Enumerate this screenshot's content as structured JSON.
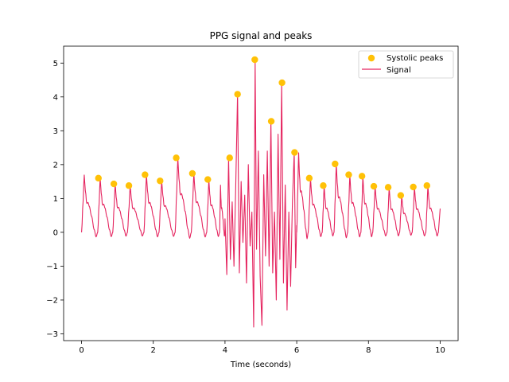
{
  "chart_data": {
    "type": "line",
    "title": "PPG signal and peaks",
    "xlabel": "Time (seconds)",
    "ylabel": "",
    "xlim": [
      -0.5,
      10.5
    ],
    "ylim": [
      -3.2,
      5.5
    ],
    "xticks": [
      0,
      2,
      4,
      6,
      8,
      10
    ],
    "yticks": [
      -3,
      -2,
      -1,
      0,
      1,
      2,
      3,
      4,
      5
    ],
    "grid": false,
    "legend_position": "top-right",
    "series": [
      {
        "name": "Signal",
        "kind": "line",
        "color": "#e5245f",
        "beats": [
          {
            "start": 0.0,
            "peak": 1.7
          },
          {
            "start": 0.45,
            "peak": 1.6
          },
          {
            "start": 0.87,
            "peak": 1.43
          },
          {
            "start": 1.28,
            "peak": 1.38
          },
          {
            "start": 1.74,
            "peak": 1.7
          },
          {
            "start": 2.16,
            "peak": 1.52
          },
          {
            "start": 2.61,
            "peak": 2.2
          },
          {
            "start": 3.06,
            "peak": 1.74
          },
          {
            "start": 3.49,
            "peak": 1.56
          },
          {
            "start": 3.85,
            "peak": 1.4
          }
        ],
        "noise_segment": {
          "start": 4.0,
          "end": 6.0,
          "anchors": [
            [
              4.0,
              0.4
            ],
            [
              4.05,
              -1.25
            ],
            [
              4.1,
              2.2
            ],
            [
              4.15,
              -0.8
            ],
            [
              4.2,
              0.9
            ],
            [
              4.25,
              -1.0
            ],
            [
              4.3,
              1.4
            ],
            [
              4.35,
              4.1
            ],
            [
              4.4,
              -1.2
            ],
            [
              4.45,
              1.5
            ],
            [
              4.5,
              -0.3
            ],
            [
              4.55,
              1.1
            ],
            [
              4.6,
              -1.5
            ],
            [
              4.65,
              2.0
            ],
            [
              4.7,
              -0.4
            ],
            [
              4.75,
              0.6
            ],
            [
              4.8,
              -2.8
            ],
            [
              4.84,
              5.1
            ],
            [
              4.88,
              -0.5
            ],
            [
              4.93,
              2.4
            ],
            [
              4.98,
              -1.3
            ],
            [
              5.03,
              -2.75
            ],
            [
              5.08,
              1.7
            ],
            [
              5.13,
              -0.7
            ],
            [
              5.18,
              2.4
            ],
            [
              5.23,
              -1.0
            ],
            [
              5.28,
              3.3
            ],
            [
              5.33,
              -1.2
            ],
            [
              5.38,
              0.6
            ],
            [
              5.43,
              -2.0
            ],
            [
              5.48,
              2.9
            ],
            [
              5.53,
              -0.8
            ],
            [
              5.58,
              4.4
            ],
            [
              5.63,
              -1.5
            ],
            [
              5.68,
              1.4
            ],
            [
              5.73,
              -2.3
            ],
            [
              5.78,
              0.6
            ],
            [
              5.83,
              -1.6
            ],
            [
              5.88,
              0.9
            ],
            [
              5.93,
              2.36
            ],
            [
              5.97,
              -1.05
            ],
            [
              6.0,
              0.2
            ]
          ]
        },
        "beats_after": [
          {
            "start": 6.0,
            "peak": 2.36
          },
          {
            "start": 6.32,
            "peak": 1.6
          },
          {
            "start": 6.71,
            "peak": 1.38
          },
          {
            "start": 7.04,
            "peak": 2.02
          },
          {
            "start": 7.42,
            "peak": 1.7
          },
          {
            "start": 7.79,
            "peak": 1.66
          },
          {
            "start": 8.12,
            "peak": 1.36
          },
          {
            "start": 8.52,
            "peak": 1.33
          },
          {
            "start": 8.87,
            "peak": 1.09
          },
          {
            "start": 9.22,
            "peak": 1.34
          },
          {
            "start": 9.6,
            "peak": 1.38
          }
        ],
        "end_value": 0.7,
        "end_x": 10.0
      },
      {
        "name": "Systolic peaks",
        "kind": "scatter",
        "color": "#ffc107",
        "points": [
          [
            0.47,
            1.6
          ],
          [
            0.9,
            1.43
          ],
          [
            1.32,
            1.38
          ],
          [
            1.77,
            1.7
          ],
          [
            2.19,
            1.52
          ],
          [
            2.64,
            2.2
          ],
          [
            3.09,
            1.74
          ],
          [
            3.52,
            1.56
          ],
          [
            4.13,
            2.2
          ],
          [
            4.35,
            4.08
          ],
          [
            4.83,
            5.1
          ],
          [
            5.29,
            3.28
          ],
          [
            5.59,
            4.42
          ],
          [
            5.94,
            2.36
          ],
          [
            6.35,
            1.6
          ],
          [
            6.74,
            1.38
          ],
          [
            7.07,
            2.02
          ],
          [
            7.45,
            1.7
          ],
          [
            7.82,
            1.66
          ],
          [
            8.15,
            1.36
          ],
          [
            8.55,
            1.33
          ],
          [
            8.9,
            1.09
          ],
          [
            9.25,
            1.34
          ],
          [
            9.63,
            1.38
          ]
        ]
      }
    ]
  }
}
